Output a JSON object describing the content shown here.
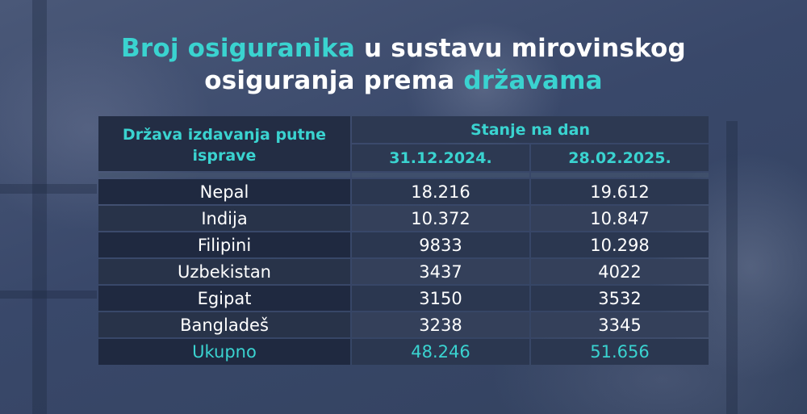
{
  "title": {
    "part1": "Broj osiguranika",
    "part2": " u sustavu mirovinskog",
    "part3": "osiguranja prema ",
    "part4": "državama"
  },
  "colors": {
    "accent": "#3ad3d0",
    "text": "#ffffff",
    "table_dark": "#1f2940"
  },
  "chart_data": {
    "type": "table",
    "columns": {
      "country": "Država izdavanja putne isprave",
      "group": "Stanje na dan",
      "dates": [
        "31.12.2024.",
        "28.02.2025."
      ]
    },
    "rows": [
      {
        "country": "Nepal",
        "values": [
          "18.216",
          "19.612"
        ]
      },
      {
        "country": "Indija",
        "values": [
          "10.372",
          "10.847"
        ]
      },
      {
        "country": "Filipini",
        "values": [
          "9833",
          "10.298"
        ]
      },
      {
        "country": "Uzbekistan",
        "values": [
          "3437",
          "4022"
        ]
      },
      {
        "country": "Egipat",
        "values": [
          "3150",
          "3532"
        ]
      },
      {
        "country": "Bangladeš",
        "values": [
          "3238",
          "3345"
        ]
      }
    ],
    "total": {
      "label": "Ukupno",
      "values": [
        "48.246",
        "51.656"
      ]
    }
  }
}
